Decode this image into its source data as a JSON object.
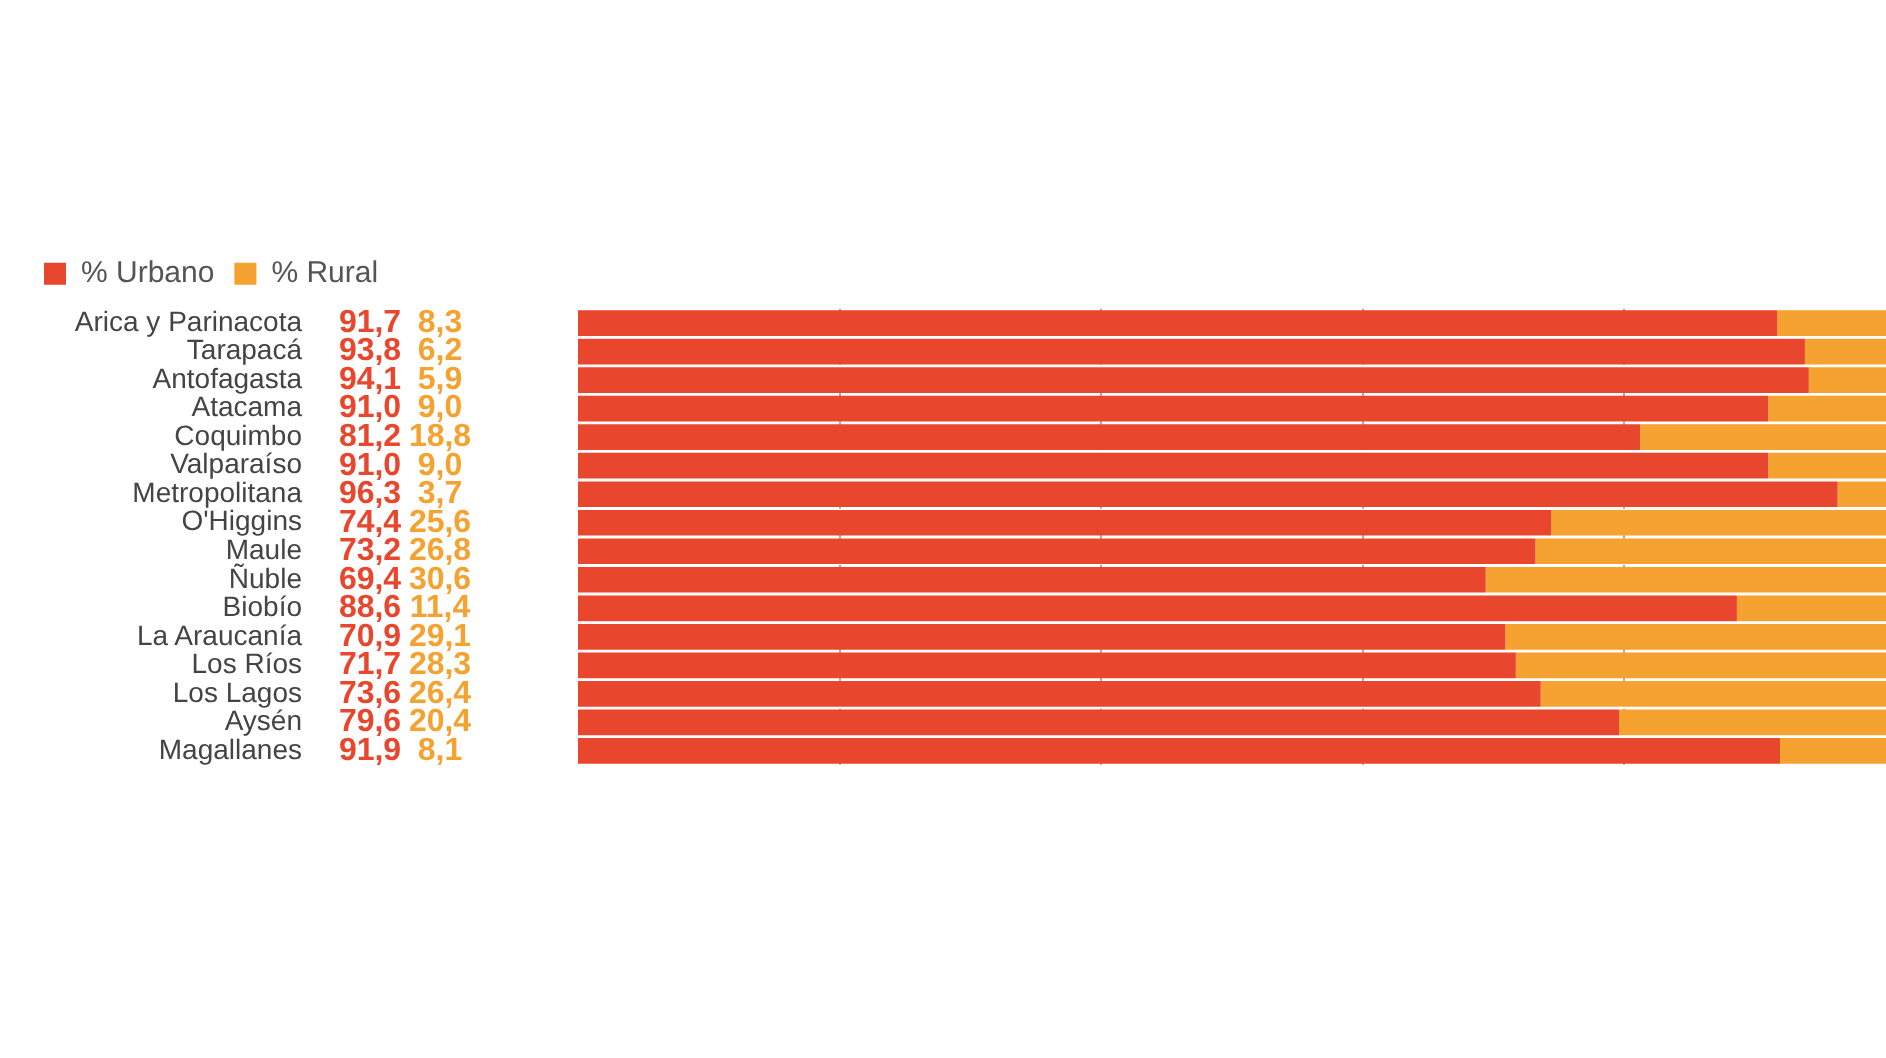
{
  "chart_data": {
    "type": "bar",
    "orientation": "horizontal",
    "stacked": true,
    "categories": [
      "Arica y Parinacota",
      "Tarapacá",
      "Antofagasta",
      "Atacama",
      "Coquimbo",
      "Valparaíso",
      "Metropolitana",
      "O'Higgins",
      "Maule",
      "Ñuble",
      "Biobío",
      "La Araucanía",
      "Los Ríos",
      "Los Lagos",
      "Aysén",
      "Magallanes"
    ],
    "series": [
      {
        "name": "% Urbano",
        "color": "#e8472d",
        "values": [
          91.7,
          93.8,
          94.1,
          91.0,
          81.2,
          91.0,
          96.3,
          74.4,
          73.2,
          69.4,
          88.6,
          70.9,
          71.7,
          73.6,
          79.6,
          91.9
        ],
        "value_labels": [
          "91,7",
          "93,8",
          "94,1",
          "91,0",
          "81,2",
          "91,0",
          "96,3",
          "74,4",
          "73,2",
          "69,4",
          "88,6",
          "70,9",
          "71,7",
          "73,6",
          "79,6",
          "91,9"
        ]
      },
      {
        "name": "% Rural",
        "color": "#f5a230",
        "values": [
          8.3,
          6.2,
          5.9,
          9.0,
          18.8,
          9.0,
          3.7,
          25.6,
          26.8,
          30.6,
          11.4,
          29.1,
          28.3,
          26.4,
          20.4,
          8.1
        ],
        "value_labels": [
          "8,3",
          "6,2",
          "5,9",
          "9,0",
          "18,8",
          "9,0",
          "3,7",
          "25,6",
          "26,8",
          "30,6",
          "11,4",
          "29,1",
          "28,3",
          "26,4",
          "20,4",
          "8,1"
        ]
      }
    ],
    "xlim": [
      0,
      100
    ],
    "xticks": [
      {
        "value": 20,
        "label": null
      },
      {
        "value": 40,
        "label": null
      },
      {
        "value": 60,
        "label": null
      },
      {
        "value": 80,
        "label": null
      }
    ],
    "grid": "x",
    "legend": "top",
    "tick_labels": "y"
  }
}
